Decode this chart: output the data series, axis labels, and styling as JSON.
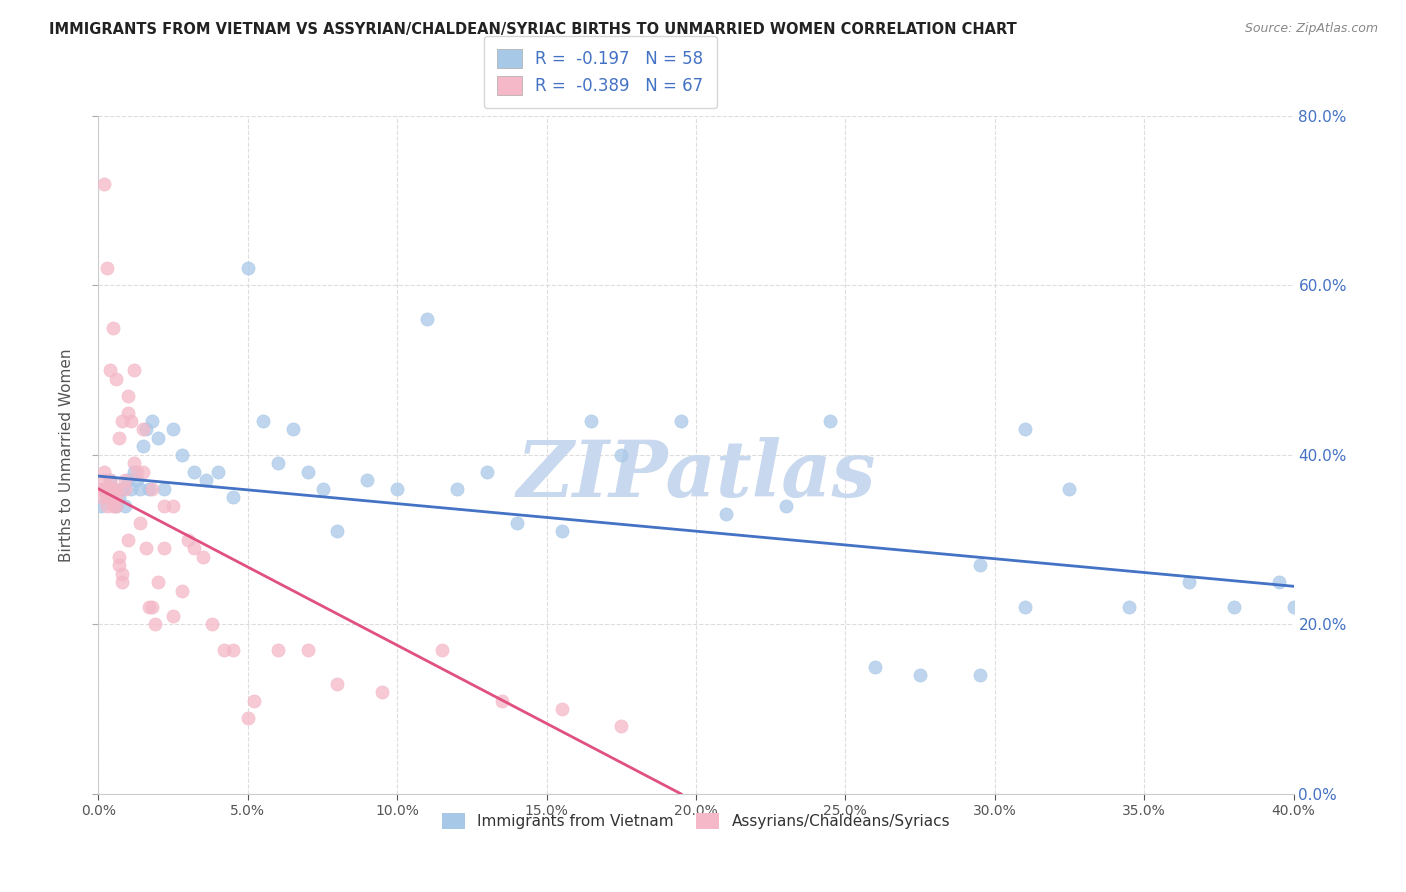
{
  "title": "IMMIGRANTS FROM VIETNAM VS ASSYRIAN/CHALDEAN/SYRIAC BIRTHS TO UNMARRIED WOMEN CORRELATION CHART",
  "source": "Source: ZipAtlas.com",
  "ylabel_label": "Births to Unmarried Women",
  "legend_label1": "Immigrants from Vietnam",
  "legend_label2": "Assyrians/Chaldeans/Syriacs",
  "r1": -0.197,
  "n1": 58,
  "r2": -0.389,
  "n2": 67,
  "color_blue": "#a8c8e8",
  "color_pink": "#f4b8c8",
  "color_trend_blue": "#4472c4",
  "color_trend_pink": "#e05080",
  "xlim": [
    0.0,
    0.4
  ],
  "ylim": [
    0.0,
    0.8
  ],
  "xticks": [
    0.0,
    0.05,
    0.1,
    0.15,
    0.2,
    0.25,
    0.3,
    0.35,
    0.4
  ],
  "yticks": [
    0.0,
    0.2,
    0.4,
    0.6,
    0.8
  ],
  "blue_x": [
    0.001,
    0.002,
    0.003,
    0.004,
    0.005,
    0.006,
    0.007,
    0.008,
    0.009,
    0.01,
    0.011,
    0.012,
    0.013,
    0.014,
    0.015,
    0.016,
    0.017,
    0.018,
    0.02,
    0.022,
    0.025,
    0.028,
    0.032,
    0.036,
    0.04,
    0.045,
    0.05,
    0.055,
    0.06,
    0.065,
    0.07,
    0.075,
    0.08,
    0.09,
    0.1,
    0.11,
    0.12,
    0.13,
    0.14,
    0.155,
    0.165,
    0.175,
    0.195,
    0.21,
    0.23,
    0.245,
    0.26,
    0.275,
    0.295,
    0.31,
    0.325,
    0.345,
    0.365,
    0.38,
    0.395,
    0.4,
    0.295,
    0.31
  ],
  "blue_y": [
    0.34,
    0.36,
    0.35,
    0.37,
    0.36,
    0.34,
    0.35,
    0.36,
    0.34,
    0.37,
    0.36,
    0.38,
    0.37,
    0.36,
    0.41,
    0.43,
    0.36,
    0.44,
    0.42,
    0.36,
    0.43,
    0.4,
    0.38,
    0.37,
    0.38,
    0.35,
    0.62,
    0.44,
    0.39,
    0.43,
    0.38,
    0.36,
    0.31,
    0.37,
    0.36,
    0.56,
    0.36,
    0.38,
    0.32,
    0.31,
    0.44,
    0.4,
    0.44,
    0.33,
    0.34,
    0.44,
    0.15,
    0.14,
    0.27,
    0.43,
    0.36,
    0.22,
    0.25,
    0.22,
    0.25,
    0.22,
    0.14,
    0.22
  ],
  "pink_x": [
    0.001,
    0.001,
    0.002,
    0.002,
    0.002,
    0.003,
    0.003,
    0.003,
    0.004,
    0.004,
    0.004,
    0.005,
    0.005,
    0.005,
    0.006,
    0.006,
    0.006,
    0.007,
    0.007,
    0.008,
    0.008,
    0.009,
    0.009,
    0.01,
    0.01,
    0.011,
    0.012,
    0.013,
    0.014,
    0.015,
    0.016,
    0.017,
    0.018,
    0.019,
    0.02,
    0.022,
    0.025,
    0.028,
    0.032,
    0.038,
    0.045,
    0.052,
    0.06,
    0.07,
    0.08,
    0.095,
    0.115,
    0.135,
    0.155,
    0.175,
    0.002,
    0.003,
    0.004,
    0.005,
    0.006,
    0.007,
    0.008,
    0.01,
    0.012,
    0.015,
    0.018,
    0.022,
    0.025,
    0.03,
    0.035,
    0.042,
    0.05
  ],
  "pink_y": [
    0.36,
    0.35,
    0.38,
    0.37,
    0.36,
    0.36,
    0.35,
    0.34,
    0.37,
    0.36,
    0.35,
    0.36,
    0.35,
    0.34,
    0.35,
    0.36,
    0.34,
    0.28,
    0.27,
    0.26,
    0.25,
    0.37,
    0.36,
    0.45,
    0.3,
    0.44,
    0.5,
    0.38,
    0.32,
    0.43,
    0.29,
    0.22,
    0.22,
    0.2,
    0.25,
    0.29,
    0.21,
    0.24,
    0.29,
    0.2,
    0.17,
    0.11,
    0.17,
    0.17,
    0.13,
    0.12,
    0.17,
    0.11,
    0.1,
    0.08,
    0.72,
    0.62,
    0.5,
    0.55,
    0.49,
    0.42,
    0.44,
    0.47,
    0.39,
    0.38,
    0.36,
    0.34,
    0.34,
    0.3,
    0.28,
    0.17,
    0.09
  ],
  "watermark": "ZIPatlas",
  "watermark_color": "#c8d8ee",
  "background_color": "#ffffff",
  "grid_color": "#dddddd",
  "trend_blue_x0": 0.0,
  "trend_blue_x1": 0.4,
  "trend_blue_y0": 0.375,
  "trend_blue_y1": 0.245,
  "trend_pink_x0": 0.0,
  "trend_pink_x1": 0.195,
  "trend_pink_y0": 0.36,
  "trend_pink_y1": 0.0
}
